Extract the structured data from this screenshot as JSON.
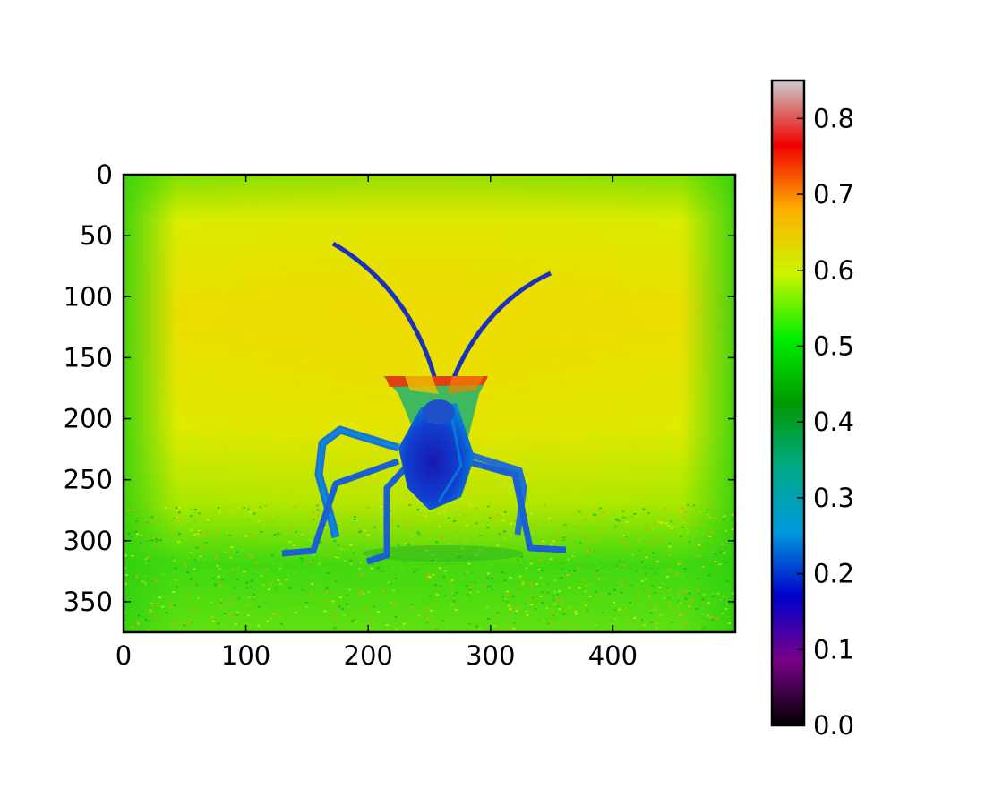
{
  "chart_data": {
    "type": "heatmap",
    "title": "",
    "xlabel": "",
    "ylabel": "",
    "description_note": "",
    "image_extent": {
      "x": [
        0,
        500
      ],
      "y": [
        375,
        0
      ]
    },
    "xticks": [
      0,
      100,
      200,
      300,
      400
    ],
    "yticks": [
      0,
      50,
      100,
      150,
      200,
      250,
      300,
      350
    ],
    "x_tick_labels": [
      "0",
      "100",
      "200",
      "300",
      "400"
    ],
    "y_tick_labels": [
      "0",
      "50",
      "100",
      "150",
      "200",
      "250",
      "300",
      "350"
    ],
    "colorbar": {
      "colormap": "nipy_spectral",
      "range": [
        0.0,
        0.85
      ],
      "ticks": [
        0.0,
        0.1,
        0.2,
        0.3,
        0.4,
        0.5,
        0.6,
        0.7,
        0.8
      ],
      "tick_labels": [
        "0.0",
        "0.1",
        "0.2",
        "0.3",
        "0.4",
        "0.5",
        "0.6",
        "0.7",
        "0.8"
      ],
      "colors": [
        "#000000",
        "#7a0088",
        "#0000cc",
        "#0099dd",
        "#00aa88",
        "#009900",
        "#00ee00",
        "#ccf500",
        "#ffb000",
        "#f00000",
        "#cccccc"
      ]
    },
    "image_colors": {
      "background_top": "#e8e000",
      "background_mid": "#d6ee00",
      "ground": "#40dd10",
      "edge": "#20d010",
      "body_dark": "#1010c0",
      "body_mid": "#0080d8",
      "legs": "#1a70d0",
      "head_red": "#e03000"
    }
  }
}
